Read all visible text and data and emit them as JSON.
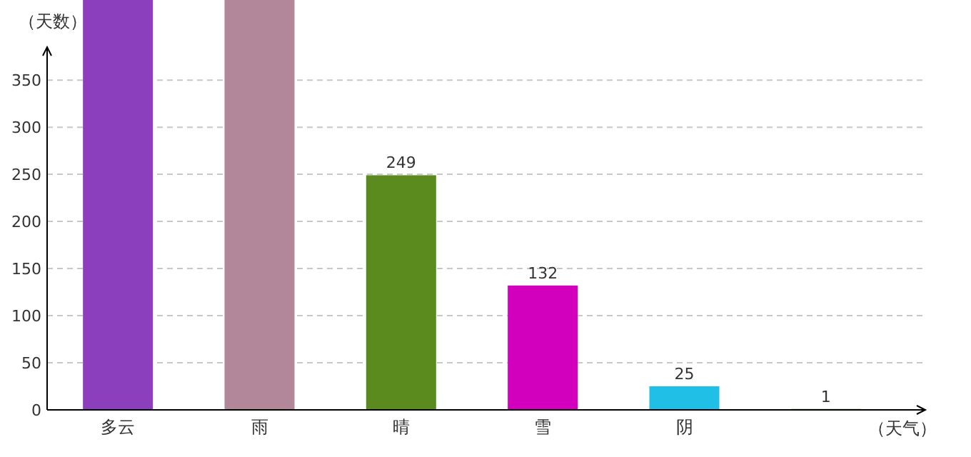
{
  "chart_data": {
    "type": "bar",
    "xlabel": "（天气）",
    "ylabel": "（天数）",
    "categories": [
      "多云",
      "雨",
      "晴",
      "雪",
      "阴",
      null
    ],
    "values": [
      435,
      435,
      249,
      132,
      25,
      1
    ],
    "colors": [
      "#8b3fbd",
      "#b3879a",
      "#5b8a1e",
      "#d200bd",
      "#20c0e6",
      "#6cc23a"
    ],
    "ylim": [
      0,
      435
    ],
    "yticks": [
      0,
      50,
      100,
      150,
      200,
      250,
      300,
      350
    ],
    "value_labels": [
      null,
      null,
      "249",
      "132",
      "25",
      "1"
    ],
    "grid": "y"
  }
}
